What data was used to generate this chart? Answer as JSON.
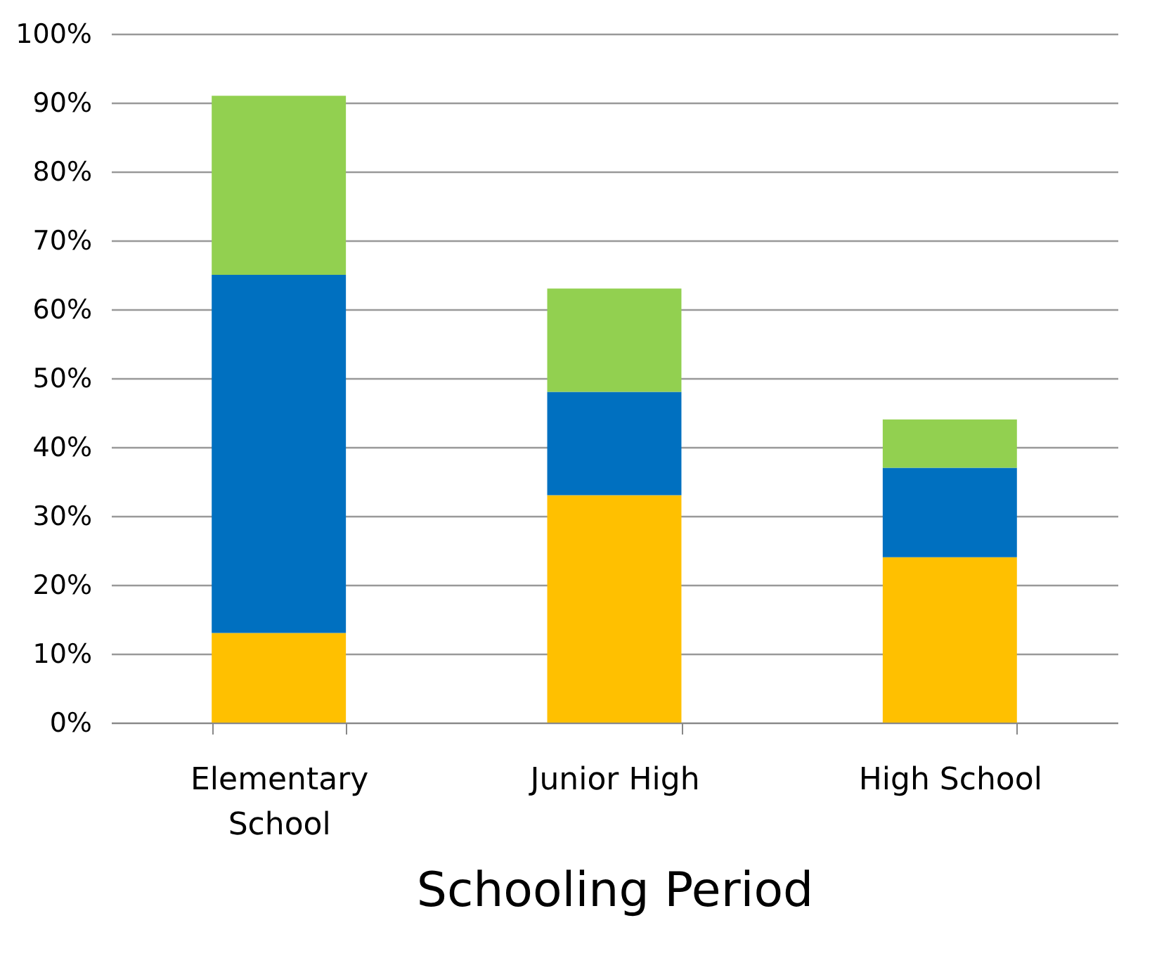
{
  "chart_data": {
    "type": "bar",
    "stacked": true,
    "xlabel": "Schooling Period",
    "categories": [
      "Elementary School",
      "Junior High",
      "High School"
    ],
    "series": [
      {
        "color": "#ffc000",
        "values": [
          13,
          33,
          24
        ]
      },
      {
        "color": "#0070c0",
        "values": [
          52,
          15,
          13
        ]
      },
      {
        "color": "#92d050",
        "values": [
          26,
          15,
          7
        ]
      }
    ],
    "ylim": [
      0,
      100
    ],
    "yticks": [
      {
        "value": 0,
        "label": "0%"
      },
      {
        "value": 10,
        "label": "10%"
      },
      {
        "value": 20,
        "label": "20%"
      },
      {
        "value": 30,
        "label": "30%"
      },
      {
        "value": 40,
        "label": "40%"
      },
      {
        "value": 50,
        "label": "50%"
      },
      {
        "value": 60,
        "label": "60%"
      },
      {
        "value": 70,
        "label": "70%"
      },
      {
        "value": 80,
        "label": "80%"
      },
      {
        "value": 90,
        "label": "90%"
      },
      {
        "value": 100,
        "label": "100%"
      }
    ],
    "grid": "y",
    "legend": false
  }
}
